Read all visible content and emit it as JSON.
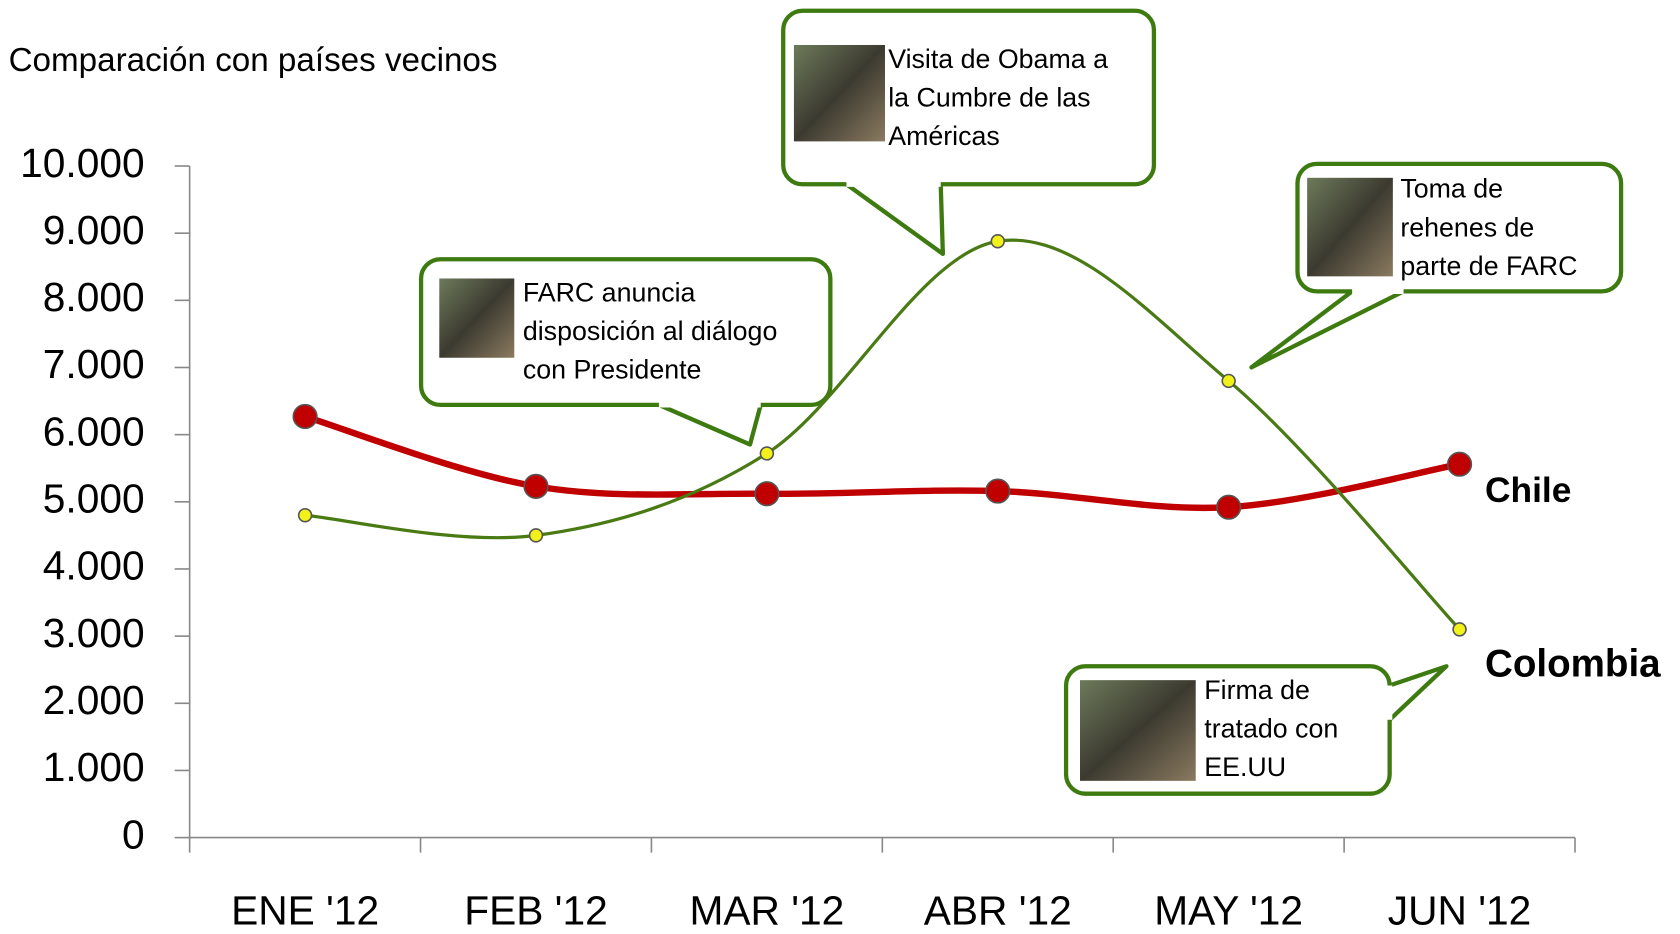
{
  "chart_data": {
    "type": "line",
    "title": "Comparación con países vecinos",
    "categories": [
      "ENE '12",
      "FEB '12",
      "MAR '12",
      "ABR '12",
      "MAY '12",
      "JUN '12"
    ],
    "series": [
      {
        "name": "Chile",
        "color": "#c00000",
        "marker_color": "#c00000",
        "values": [
          6270,
          5230,
          5120,
          5160,
          4920,
          5560
        ]
      },
      {
        "name": "Colombia",
        "color": "#4a7a14",
        "marker_color": "#f2f21a",
        "values": [
          4800,
          4500,
          5720,
          8880,
          6800,
          3100
        ]
      }
    ],
    "ylim": [
      0,
      10000
    ],
    "yticks": [
      0,
      {
        "value": 1000,
        "label": "1.000"
      },
      {
        "value": 2000,
        "label": "2.000"
      },
      {
        "value": 3000,
        "label": "3.000"
      },
      {
        "value": 4000,
        "label": "4.000"
      },
      {
        "value": 5000,
        "label": "5.000"
      },
      {
        "value": 6000,
        "label": "6.000"
      },
      {
        "value": 7000,
        "label": "7.000"
      },
      {
        "value": 8000,
        "label": "8.000"
      },
      {
        "value": 9000,
        "label": "9.000"
      },
      {
        "value": 10000,
        "label": "10.000"
      }
    ],
    "smooth": true,
    "annotations": [
      {
        "lines": [
          "FARC anuncia",
          "disposición al diálogo",
          "con Presidente"
        ]
      },
      {
        "lines": [
          "Visita de Obama a",
          "la Cumbre de las",
          "Américas"
        ]
      },
      {
        "lines": [
          "Toma de",
          "rehenes de",
          "parte de FARC"
        ]
      },
      {
        "lines": [
          "Firma de",
          "tratado con",
          "EE.UU"
        ]
      }
    ]
  }
}
